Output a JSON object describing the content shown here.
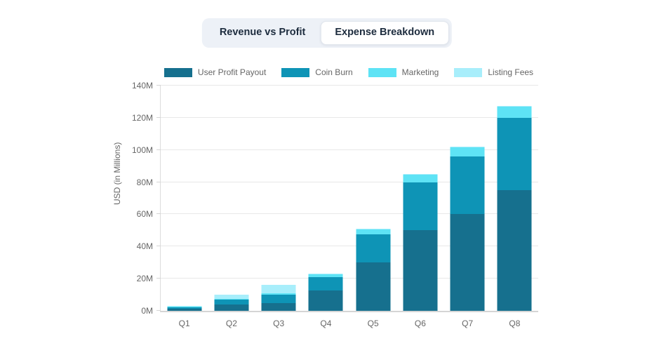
{
  "toggle": {
    "options": [
      {
        "label": "Revenue vs Profit",
        "active": false
      },
      {
        "label": "Expense Breakdown",
        "active": true
      }
    ]
  },
  "chart_data": {
    "type": "bar",
    "stacked": true,
    "title": "",
    "xlabel": "",
    "ylabel": "USD (in Millions)",
    "ylim": [
      0,
      140
    ],
    "yticks": [
      "0M",
      "20M",
      "40M",
      "60M",
      "80M",
      "100M",
      "120M",
      "140M"
    ],
    "grid": true,
    "legend_position": "top",
    "categories": [
      "Q1",
      "Q2",
      "Q3",
      "Q4",
      "Q5",
      "Q6",
      "Q7",
      "Q8"
    ],
    "series": [
      {
        "name": "User Profit Payout",
        "color": "#16708e",
        "values": [
          1.5,
          4,
          5,
          12.5,
          30,
          50,
          60,
          75
        ]
      },
      {
        "name": "Coin Burn",
        "color": "#0e94b6",
        "values": [
          0.8,
          3,
          5,
          8.5,
          17.5,
          30,
          36,
          45
        ]
      },
      {
        "name": "Marketing",
        "color": "#5ee3f5",
        "values": [
          0.2,
          0.5,
          1,
          1.5,
          3,
          4.5,
          5.5,
          7
        ]
      },
      {
        "name": "Listing Fees",
        "color": "#a8eefb",
        "values": [
          0.5,
          2.5,
          5,
          0.5,
          0.5,
          0.5,
          0.5,
          0.5
        ]
      }
    ]
  },
  "colors": {
    "grid": "#e8e8e8",
    "axis": "#d5d5d5",
    "tick_text": "#666666",
    "toggle_bg": "#edf1f7",
    "toggle_active_bg": "#ffffff",
    "toggle_text": "#1d2c3e"
  }
}
